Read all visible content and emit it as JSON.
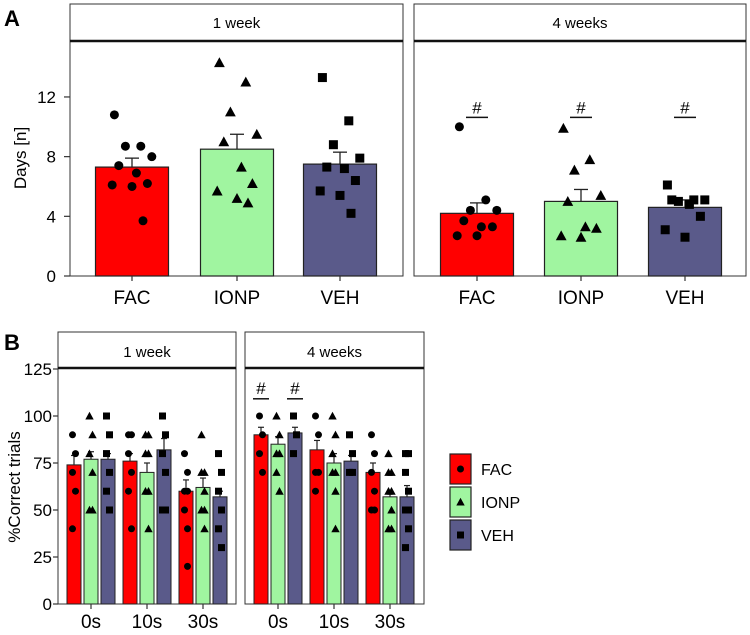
{
  "colors": {
    "FAC": "#ff0000",
    "IONP": "#a0f5a0",
    "VEH": "#5a5a8a"
  },
  "chart_data": [
    {
      "panel": "A",
      "type": "bar",
      "ylabel": "Days [n]",
      "ylim": [
        0,
        15.8
      ],
      "yticks": [
        0,
        4,
        8,
        12
      ],
      "categories": [
        "FAC",
        "IONP",
        "VEH"
      ],
      "marker_icons": {
        "FAC": "circle-icon",
        "IONP": "triangle-icon",
        "VEH": "square-icon"
      },
      "facets": [
        {
          "title": "1 week",
          "groups": [
            {
              "category": "FAC",
              "mean": 7.3,
              "sem_top": 7.9,
              "points": [
                10.8,
                8.7,
                8.7,
                8.0,
                7.4,
                6.9,
                6.2,
                6.1,
                6.0,
                3.7
              ],
              "annotation": ""
            },
            {
              "category": "IONP",
              "mean": 8.5,
              "sem_top": 9.5,
              "points": [
                14.3,
                13.0,
                11.0,
                9.5,
                9.0,
                7.3,
                6.2,
                5.7,
                5.2,
                4.9
              ],
              "annotation": ""
            },
            {
              "category": "VEH",
              "mean": 7.5,
              "sem_top": 8.3,
              "points": [
                13.3,
                10.4,
                8.8,
                7.9,
                7.3,
                7.2,
                6.4,
                5.7,
                5.4,
                4.2
              ],
              "annotation": ""
            }
          ]
        },
        {
          "title": "4 weeks",
          "groups": [
            {
              "category": "FAC",
              "mean": 4.2,
              "sem_top": 4.9,
              "points": [
                10.0,
                5.1,
                4.4,
                4.4,
                3.7,
                3.3,
                3.3,
                2.7,
                2.7
              ],
              "annotation": "#"
            },
            {
              "category": "IONP",
              "mean": 5.0,
              "sem_top": 5.8,
              "points": [
                9.9,
                7.8,
                7.1,
                5.4,
                5.0,
                3.3,
                3.2,
                2.7,
                2.6
              ],
              "annotation": "#"
            },
            {
              "category": "VEH",
              "mean": 4.6,
              "sem_top": 5.1,
              "points": [
                6.1,
                5.1,
                5.0,
                5.1,
                5.1,
                4.8,
                4.0,
                3.1,
                2.6
              ],
              "annotation": "#"
            }
          ]
        }
      ]
    },
    {
      "panel": "B",
      "type": "bar",
      "ylabel": "%Correct trials",
      "ylim": [
        0,
        125
      ],
      "yticks": [
        0,
        25,
        50,
        75,
        100,
        125
      ],
      "categories": [
        "0s",
        "10s",
        "30s"
      ],
      "series_names": [
        "FAC",
        "IONP",
        "VEH"
      ],
      "legend": "right",
      "facets": [
        {
          "title": "1 week",
          "groups": [
            {
              "category": "0s",
              "bars": [
                {
                  "mean": 74,
                  "sem_top": 79,
                  "points": [
                    90,
                    80,
                    70,
                    60,
                    40
                  ]
                },
                {
                  "mean": 77,
                  "sem_top": 81,
                  "points": [
                    100,
                    90,
                    80,
                    70,
                    50,
                    50
                  ]
                },
                {
                  "mean": 77,
                  "sem_top": 80,
                  "points": [
                    100,
                    90,
                    80,
                    70,
                    60,
                    50
                  ]
                }
              ],
              "annotations": [
                "",
                "",
                ""
              ]
            },
            {
              "category": "10s",
              "bars": [
                {
                  "mean": 76,
                  "sem_top": 80,
                  "points": [
                    90,
                    90,
                    80,
                    70,
                    60,
                    40
                  ]
                },
                {
                  "mean": 70,
                  "sem_top": 75,
                  "points": [
                    90,
                    90,
                    80,
                    80,
                    60,
                    60,
                    40
                  ]
                },
                {
                  "mean": 82,
                  "sem_top": 88,
                  "points": [
                    100,
                    90,
                    80,
                    70,
                    50,
                    50
                  ]
                }
              ],
              "annotations": [
                "",
                "",
                ""
              ]
            },
            {
              "category": "30s",
              "bars": [
                {
                  "mean": 60,
                  "sem_top": 66,
                  "points": [
                    80,
                    70,
                    60,
                    60,
                    50,
                    40,
                    20
                  ]
                },
                {
                  "mean": 62,
                  "sem_top": 67,
                  "points": [
                    90,
                    70,
                    70,
                    60,
                    50,
                    50,
                    40
                  ]
                },
                {
                  "mean": 57,
                  "sem_top": 60,
                  "points": [
                    80,
                    70,
                    60,
                    50,
                    40,
                    30
                  ]
                }
              ],
              "annotations": [
                "",
                "",
                ""
              ]
            }
          ]
        },
        {
          "title": "4 weeks",
          "groups": [
            {
              "category": "0s",
              "bars": [
                {
                  "mean": 90,
                  "sem_top": 94,
                  "points": [
                    100,
                    90,
                    80,
                    70
                  ]
                },
                {
                  "mean": 85,
                  "sem_top": 89,
                  "points": [
                    100,
                    90,
                    80,
                    80,
                    70,
                    60
                  ]
                },
                {
                  "mean": 91,
                  "sem_top": 94,
                  "points": [
                    100,
                    90,
                    80
                  ]
                }
              ],
              "annotations": [
                "#",
                "",
                "#"
              ]
            },
            {
              "category": "10s",
              "bars": [
                {
                  "mean": 82,
                  "sem_top": 87,
                  "points": [
                    100,
                    90,
                    70,
                    70,
                    60
                  ]
                },
                {
                  "mean": 75,
                  "sem_top": 80,
                  "points": [
                    100,
                    90,
                    80,
                    70,
                    70,
                    60,
                    40
                  ]
                },
                {
                  "mean": 76,
                  "sem_top": 79,
                  "points": [
                    90,
                    80,
                    70,
                    70
                  ]
                }
              ],
              "annotations": [
                "",
                "",
                ""
              ]
            },
            {
              "category": "30s",
              "bars": [
                {
                  "mean": 70,
                  "sem_top": 75,
                  "points": [
                    90,
                    80,
                    70,
                    60,
                    50,
                    50
                  ]
                },
                {
                  "mean": 57,
                  "sem_top": 60,
                  "points": [
                    80,
                    70,
                    70,
                    60,
                    60,
                    50,
                    40,
                    40
                  ]
                },
                {
                  "mean": 57,
                  "sem_top": 63,
                  "points": [
                    80,
                    80,
                    70,
                    60,
                    50,
                    50,
                    40,
                    30
                  ]
                }
              ],
              "annotations": [
                "",
                "",
                ""
              ]
            }
          ]
        }
      ]
    }
  ],
  "panel_labels": [
    "A",
    "B"
  ]
}
